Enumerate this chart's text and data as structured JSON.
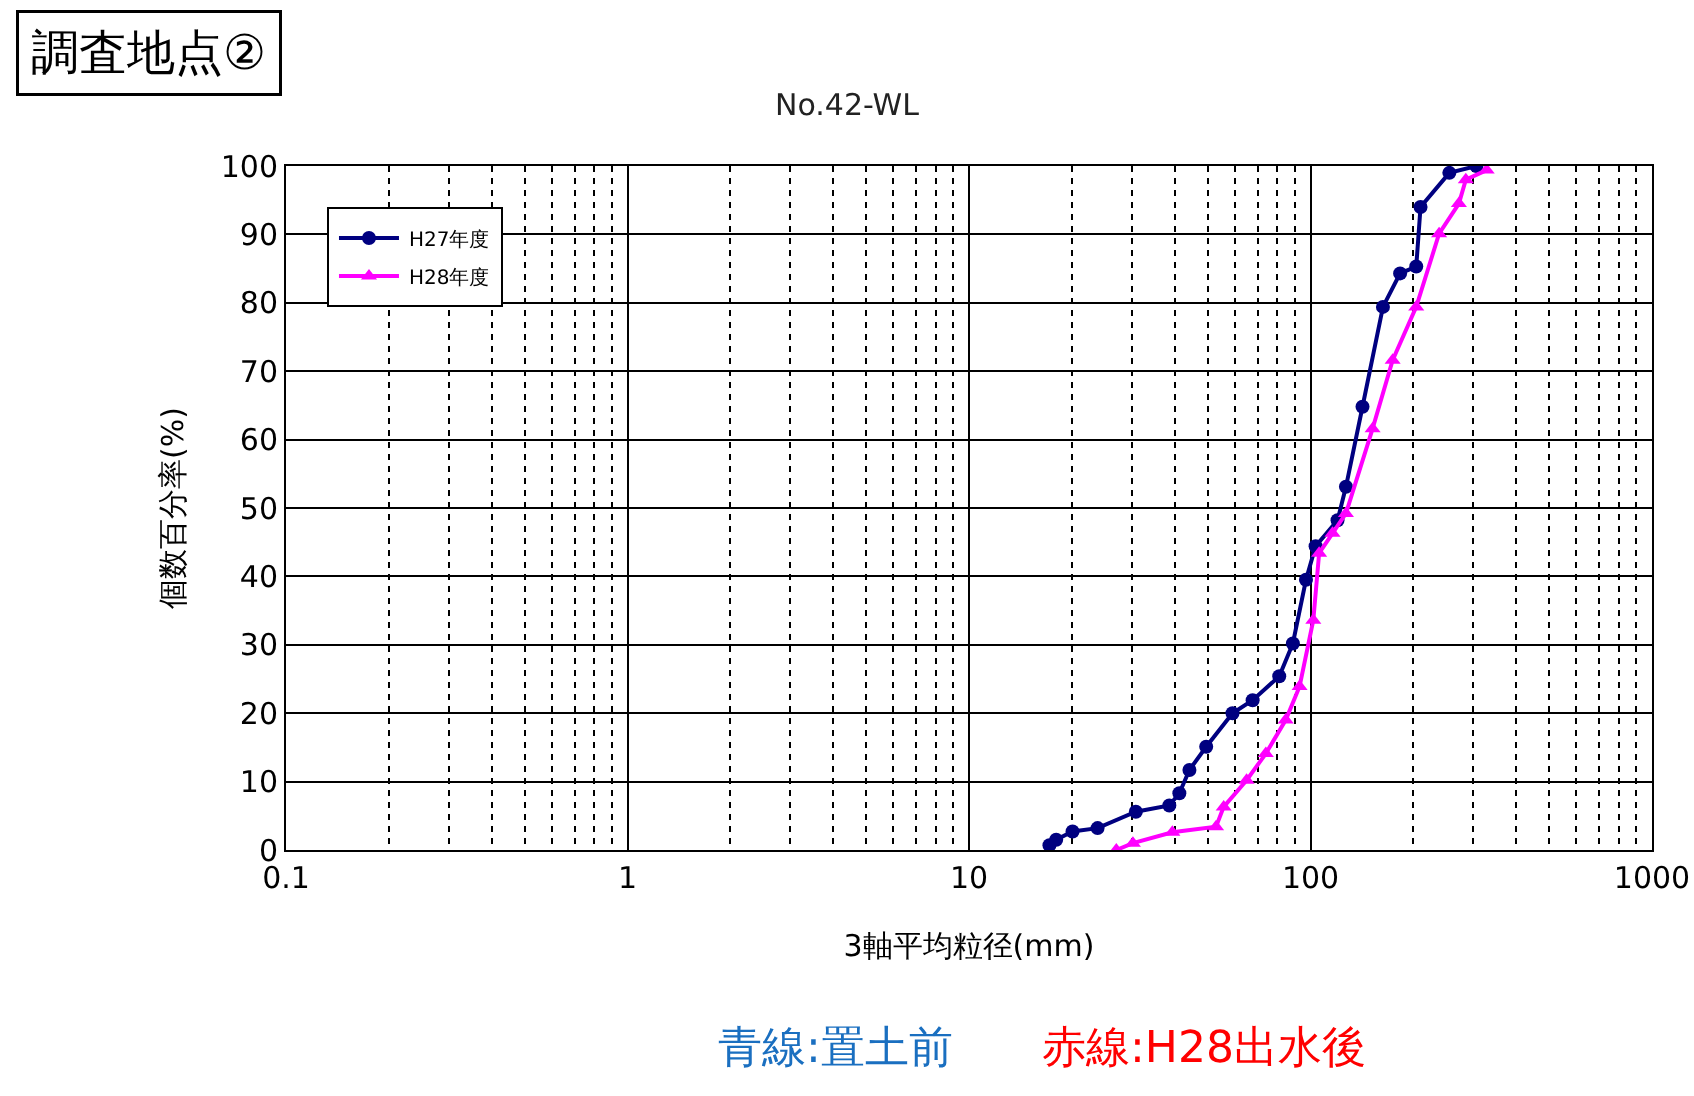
{
  "chart_data": {
    "type": "line",
    "title": "No.42-WL",
    "xlabel": "3軸平均粒径(mm)",
    "ylabel": "個数百分率(%)",
    "log": "x",
    "xlim": [
      0.1,
      1000
    ],
    "xticks": [
      0.1,
      1,
      10,
      100,
      1000
    ],
    "ylim": [
      0,
      100
    ],
    "yticks": [
      0,
      10,
      20,
      30,
      40,
      50,
      60,
      70,
      80,
      90,
      100
    ],
    "grid": true,
    "legend": "top left",
    "annotations": [
      "調査地点②",
      "青線:置土前",
      "赤線:H28出水後"
    ],
    "series": [
      {
        "name": "H27年度",
        "color": "#000080",
        "marker": "circle",
        "x": [
          17.2,
          18,
          20.1,
          23.8,
          30.8,
          38.6,
          41.3,
          44.2,
          49.5,
          59.1,
          67.7,
          81,
          88.8,
          97,
          103.5,
          120,
          127,
          142,
          163,
          183,
          204,
          210,
          255,
          306
        ],
        "values": [
          0.7,
          1.5,
          2.7,
          3.2,
          5.6,
          6.5,
          8.3,
          11.7,
          15.1,
          20,
          21.9,
          25.4,
          30.2,
          39.5,
          44.4,
          48.2,
          53.1,
          64.8,
          79.4,
          84.3,
          85.3,
          94,
          99,
          100
        ]
      },
      {
        "name": "H28年度",
        "color": "#ff00ff",
        "marker": "triangle",
        "x": [
          27,
          30.2,
          39.4,
          52.9,
          55.7,
          65,
          74,
          84.6,
          92.9,
          101.9,
          106,
          116,
          127,
          152,
          174,
          204,
          238,
          272,
          285,
          328
        ],
        "values": [
          0,
          1,
          2.6,
          3.4,
          6.3,
          10.2,
          14.1,
          19,
          23.9,
          33.6,
          43.4,
          46.3,
          49.2,
          61.6,
          71.6,
          79.4,
          90.1,
          94.5,
          98,
          99.4
        ]
      }
    ]
  }
}
